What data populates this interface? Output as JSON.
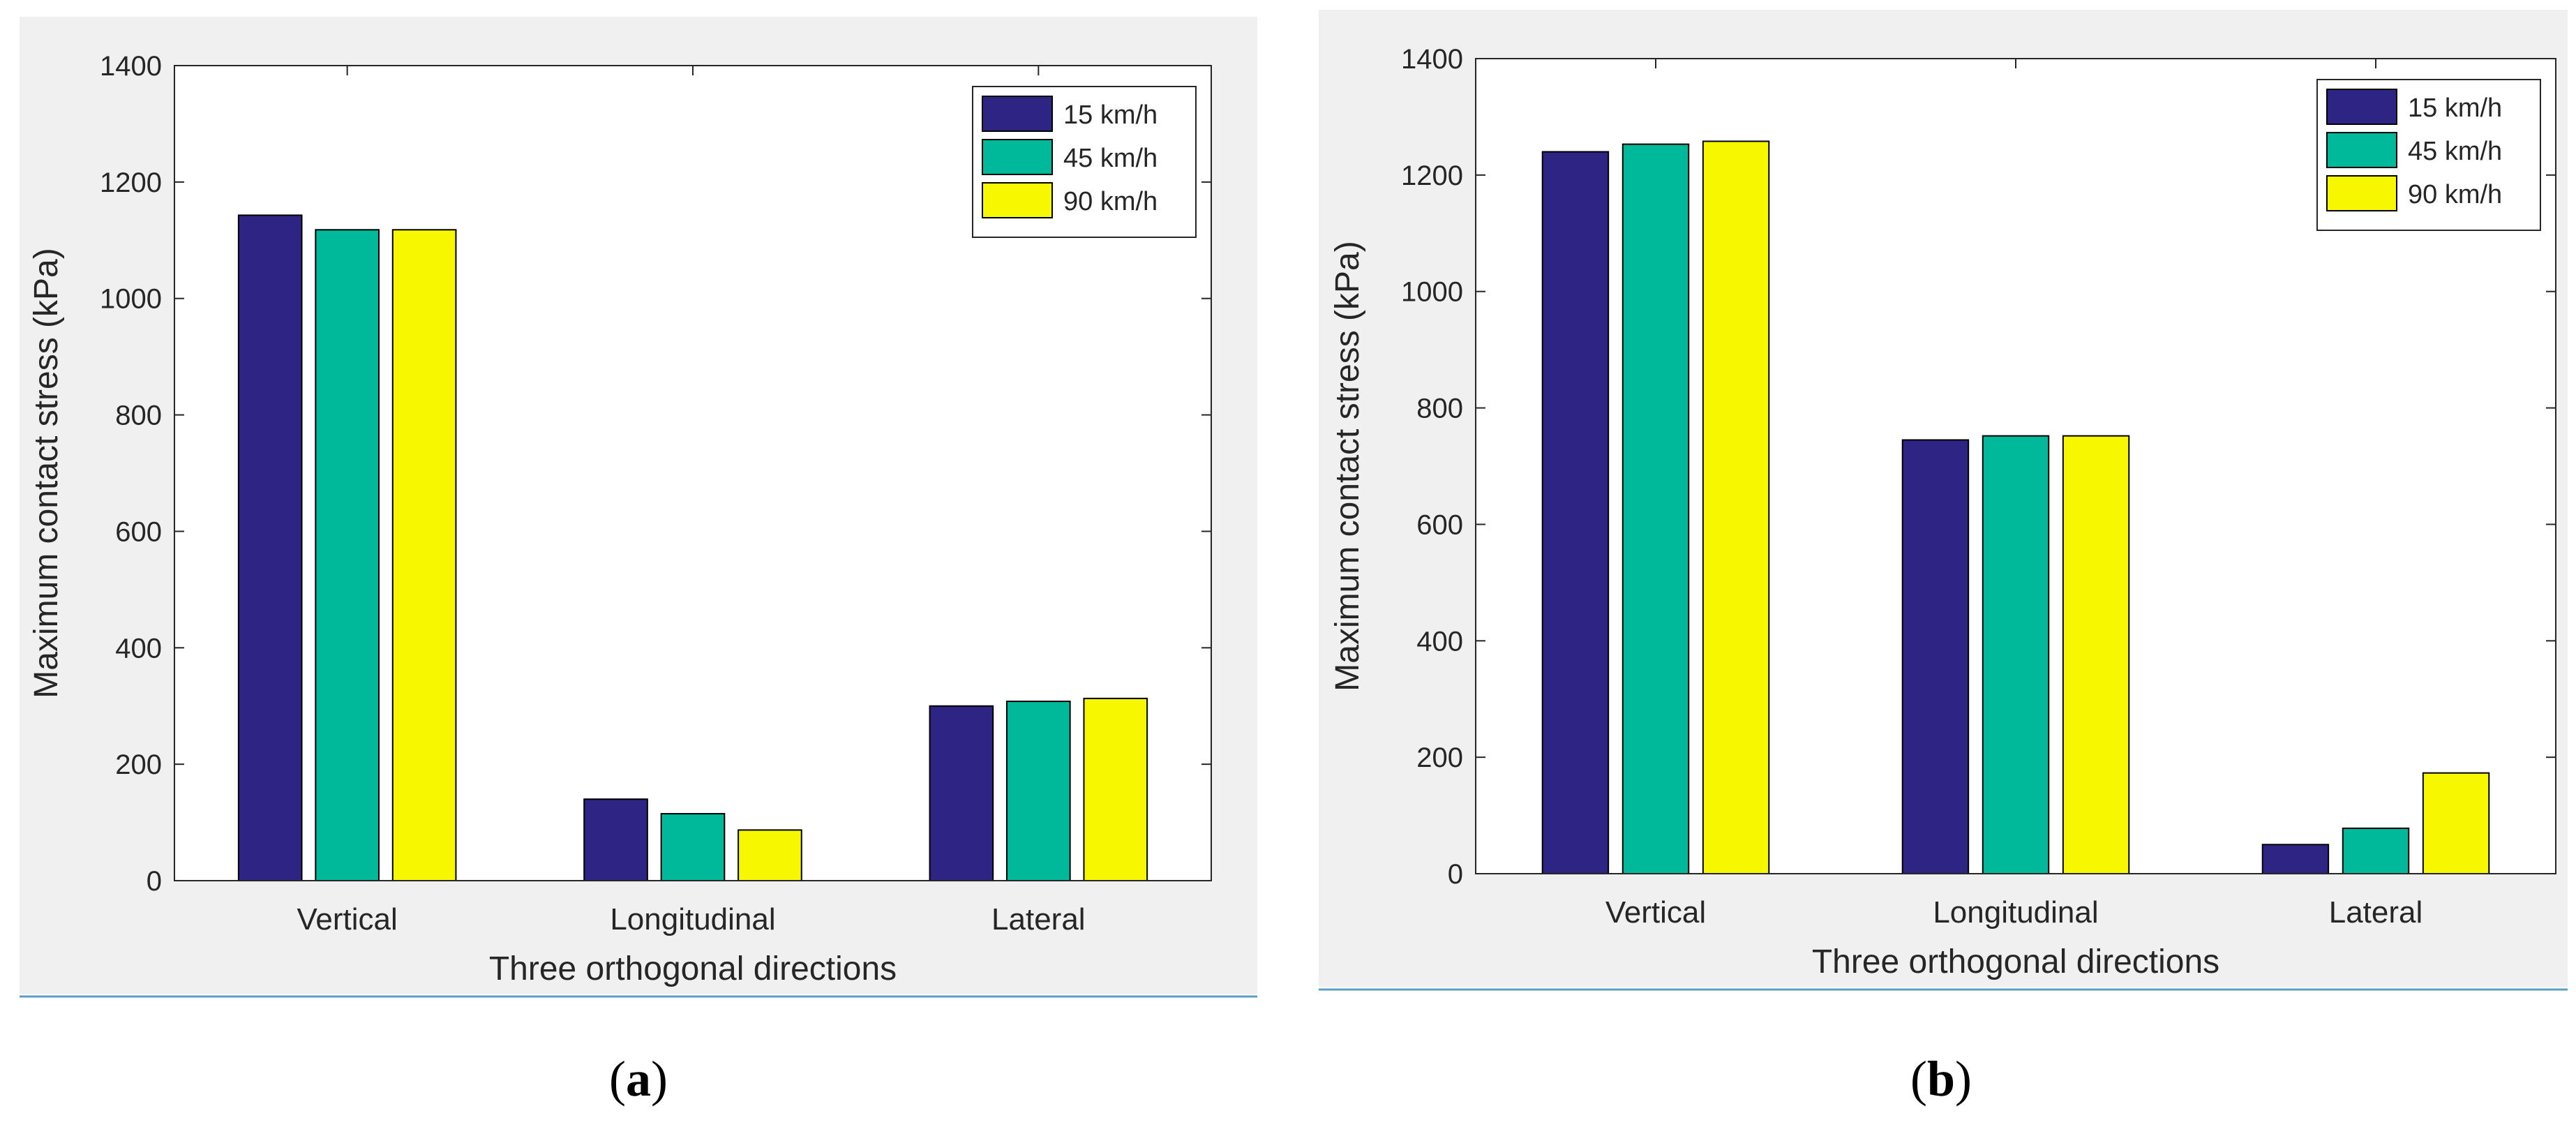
{
  "chart_data": [
    {
      "type": "bar",
      "panel_label": "a",
      "title": "",
      "xlabel": "Three orthogonal directions",
      "ylabel": "Maximum contact stress (kPa)",
      "categories": [
        "Vertical",
        "Longitudinal",
        "Lateral"
      ],
      "ylim": [
        0,
        1400
      ],
      "yticks": [
        0,
        200,
        400,
        600,
        800,
        1000,
        1200,
        1400
      ],
      "legend_position": "top-right",
      "series": [
        {
          "name": "15 km/h",
          "color": "#2e2483",
          "values": [
            1143,
            140,
            300
          ]
        },
        {
          "name": "45 km/h",
          "color": "#00b89a",
          "values": [
            1118,
            115,
            308
          ]
        },
        {
          "name": "90 km/h",
          "color": "#f7f700",
          "values": [
            1118,
            87,
            313
          ]
        }
      ]
    },
    {
      "type": "bar",
      "panel_label": "b",
      "title": "",
      "xlabel": "Three orthogonal directions",
      "ylabel": "Maximum contact stress (kPa)",
      "categories": [
        "Vertical",
        "Longitudinal",
        "Lateral"
      ],
      "ylim": [
        0,
        1400
      ],
      "yticks": [
        0,
        200,
        400,
        600,
        800,
        1000,
        1200,
        1400
      ],
      "legend_position": "top-right",
      "series": [
        {
          "name": "15 km/h",
          "color": "#2e2483",
          "values": [
            1240,
            745,
            50
          ]
        },
        {
          "name": "45 km/h",
          "color": "#00b89a",
          "values": [
            1253,
            752,
            78
          ]
        },
        {
          "name": "90 km/h",
          "color": "#f7f700",
          "values": [
            1258,
            752,
            173
          ]
        }
      ]
    }
  ]
}
